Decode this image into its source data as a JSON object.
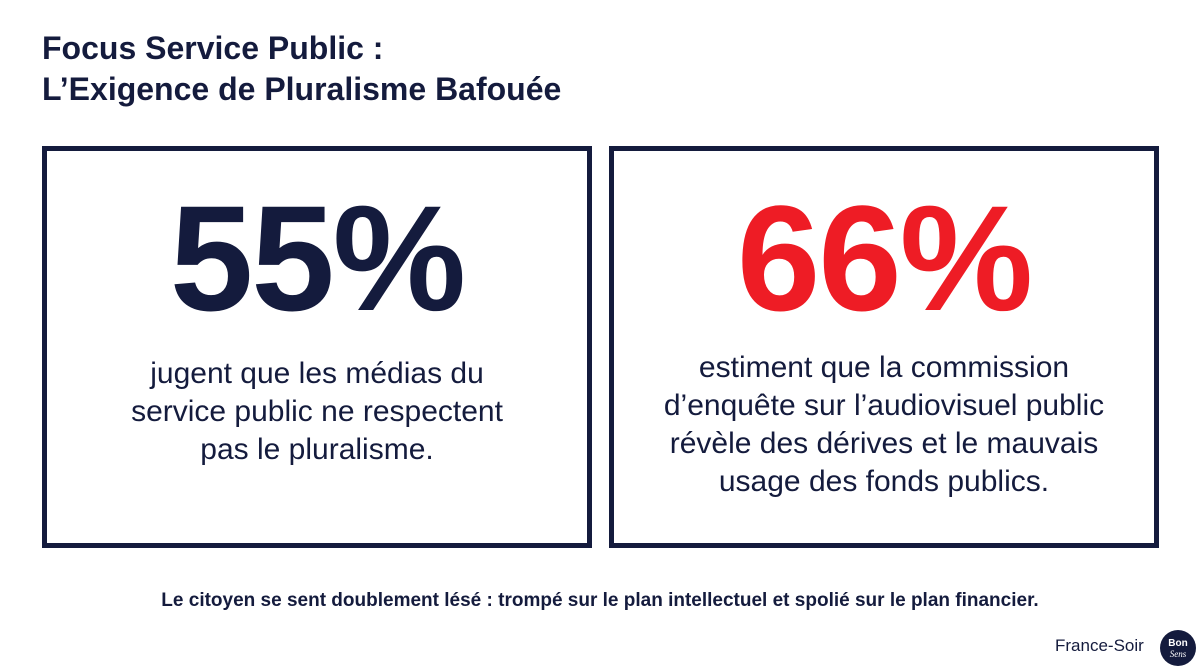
{
  "header": {
    "title_line1": "Focus Service Public :",
    "title_line2": "L’Exigence de Pluralisme Bafouée"
  },
  "cards": [
    {
      "percent": "55%",
      "color": "#141b3d",
      "lines": [
        "jugent que les médias du",
        "service public ne respectent",
        "pas le pluralisme."
      ]
    },
    {
      "percent": "66%",
      "color": "#ee1c25",
      "lines": [
        "estiment que la commission",
        "d’enquête sur l’audiovisuel public",
        "révèle des dérives et le mauvais",
        "usage des fonds publics."
      ]
    }
  ],
  "footer": {
    "text": "Le citoyen se sent doublement lésé : trompé sur le plan intellectuel et spolié sur le plan financier."
  },
  "branding": {
    "source": "France-Soir",
    "logo_line1": "Bon",
    "logo_line2": "Sens"
  }
}
